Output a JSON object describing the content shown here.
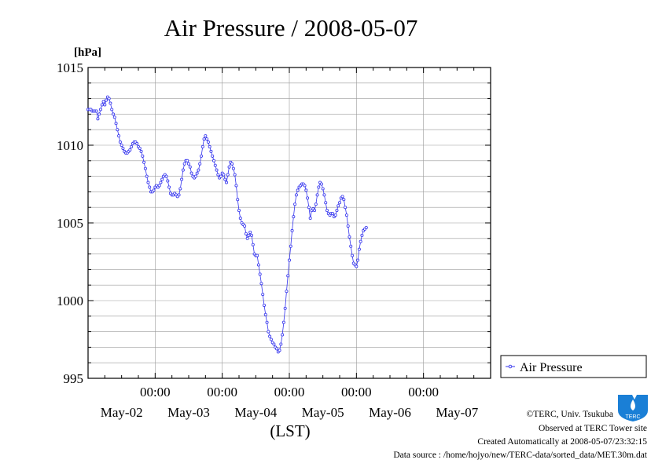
{
  "chart_data": {
    "type": "line",
    "title": "Air Pressure / 2008-05-07",
    "unit_label": "[hPa]",
    "xlabel": "(LST)",
    "ylim": [
      995,
      1015
    ],
    "yticks": [
      "995",
      "1000",
      "1005",
      "1010",
      "1015"
    ],
    "grid": true,
    "xrange_hours": [
      0,
      144
    ],
    "time_tick_label": "00:00",
    "date_labels": [
      "May-02",
      "May-03",
      "May-04",
      "May-05",
      "May-06",
      "May-07"
    ],
    "legend": {
      "placement": "right",
      "entries": [
        "Air Pressure"
      ]
    },
    "series": [
      {
        "name": "Air Pressure",
        "color": "#3333ee",
        "step_hours": 0.5,
        "values": [
          1012.3,
          1012.3,
          1012.3,
          1012.2,
          1012.2,
          1012.2,
          1012.2,
          1011.7,
          1012.0,
          1012.3,
          1012.6,
          1012.8,
          1012.6,
          1012.9,
          1013.1,
          1013.0,
          1012.7,
          1012.3,
          1012.0,
          1011.8,
          1011.4,
          1011.0,
          1010.6,
          1010.2,
          1010.0,
          1009.8,
          1009.6,
          1009.5,
          1009.5,
          1009.6,
          1009.7,
          1009.9,
          1010.1,
          1010.2,
          1010.2,
          1010.1,
          1009.9,
          1009.8,
          1009.6,
          1009.3,
          1008.9,
          1008.5,
          1008.0,
          1007.6,
          1007.3,
          1007.0,
          1007.0,
          1007.1,
          1007.3,
          1007.4,
          1007.3,
          1007.4,
          1007.6,
          1007.8,
          1008.0,
          1008.1,
          1008.0,
          1007.7,
          1007.3,
          1006.9,
          1006.8,
          1006.8,
          1006.9,
          1006.8,
          1006.7,
          1006.8,
          1007.2,
          1007.8,
          1008.4,
          1008.8,
          1009.0,
          1009.0,
          1008.8,
          1008.6,
          1008.2,
          1008.0,
          1007.9,
          1008.0,
          1008.2,
          1008.4,
          1008.8,
          1009.3,
          1009.9,
          1010.4,
          1010.6,
          1010.4,
          1010.2,
          1009.9,
          1009.6,
          1009.3,
          1009.0,
          1008.7,
          1008.4,
          1008.1,
          1007.9,
          1008.0,
          1008.2,
          1008.1,
          1007.8,
          1007.6,
          1008.1,
          1008.6,
          1008.9,
          1008.8,
          1008.5,
          1008.1,
          1007.4,
          1006.5,
          1005.8,
          1005.3,
          1005.0,
          1004.9,
          1004.8,
          1004.3,
          1004.0,
          1004.2,
          1004.4,
          1004.2,
          1003.6,
          1003.0,
          1002.9,
          1002.9,
          1002.3,
          1001.7,
          1001.1,
          1000.4,
          999.7,
          999.1,
          998.6,
          998.0,
          997.7,
          997.5,
          997.3,
          997.2,
          997.0,
          996.9,
          996.7,
          996.8,
          997.2,
          997.8,
          998.6,
          999.5,
          1000.6,
          1001.6,
          1002.6,
          1003.5,
          1004.5,
          1005.4,
          1006.2,
          1006.8,
          1007.1,
          1007.3,
          1007.4,
          1007.5,
          1007.5,
          1007.4,
          1007.1,
          1006.6,
          1006.0,
          1005.3,
          1005.8,
          1005.9,
          1005.8,
          1006.2,
          1006.8,
          1007.3,
          1007.6,
          1007.5,
          1007.2,
          1006.8,
          1006.3,
          1005.8,
          1005.6,
          1005.5,
          1005.6,
          1005.6,
          1005.4,
          1005.5,
          1005.8,
          1006.1,
          1006.3,
          1006.6,
          1006.7,
          1006.5,
          1006.0,
          1005.5,
          1004.8,
          1004.1,
          1003.5,
          1002.9,
          1002.4,
          1002.3,
          1002.2,
          1002.6,
          1003.3,
          1003.8,
          1004.2,
          1004.5,
          1004.6,
          1004.7
        ]
      }
    ]
  },
  "footer": {
    "copyright": "©TERC, Univ. Tsukuba",
    "observed": "Observed at TERC Tower site",
    "created": "Created Automatically at 2008-05-07/23:32:15",
    "source": "Data source : /home/hojyo/new/TERC-data/sorted_data/MET.30m.dat"
  },
  "logo": {
    "text": "TERC",
    "color": "#1a7fd6"
  }
}
